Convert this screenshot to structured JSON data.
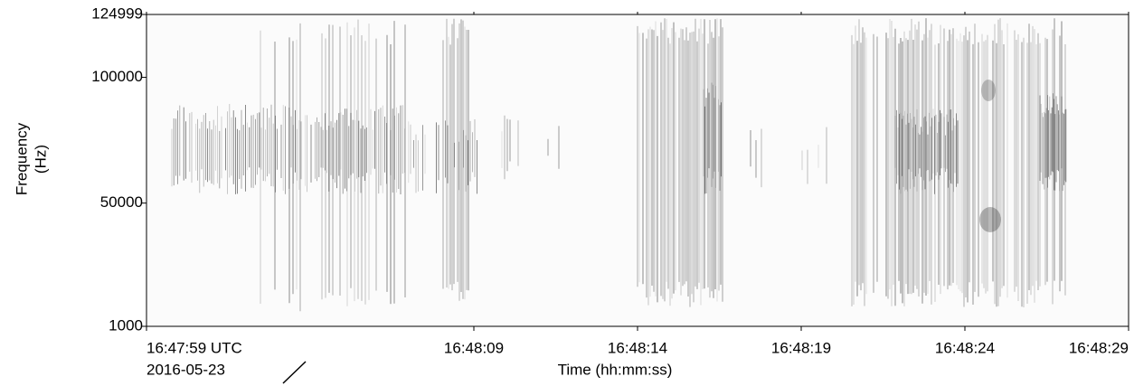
{
  "chart_data": {
    "type": "spectrogram",
    "xlabel": "Time (hh:mm:ss)",
    "ylabel": [
      "Frequency",
      "(Hz)"
    ],
    "date": "2016-05-23",
    "xlim": [
      60479,
      60509
    ],
    "xticks": [
      {
        "value": 60479,
        "label": "16:47:59 UTC"
      },
      {
        "value": 60489,
        "label": "16:48:09"
      },
      {
        "value": 60494,
        "label": "16:48:14"
      },
      {
        "value": 60499,
        "label": "16:48:19"
      },
      {
        "value": 60504,
        "label": "16:48:24"
      },
      {
        "value": 60509,
        "label": "16:48:29"
      }
    ],
    "ylim": [
      1000,
      124999
    ],
    "yticks": [
      1000,
      50000,
      100000,
      124999
    ],
    "color": "#222222"
  }
}
